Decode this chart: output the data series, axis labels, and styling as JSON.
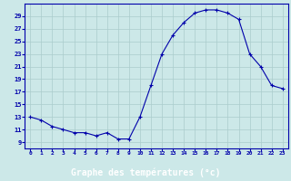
{
  "hours": [
    0,
    1,
    2,
    3,
    4,
    5,
    6,
    7,
    8,
    9,
    10,
    11,
    12,
    13,
    14,
    15,
    16,
    17,
    18,
    19,
    20,
    21,
    22,
    23
  ],
  "temps": [
    13,
    12.5,
    11.5,
    11,
    10.5,
    10.5,
    10,
    10.5,
    9.5,
    9.5,
    13,
    18,
    23,
    26,
    28,
    29.5,
    30,
    30,
    29.5,
    28.5,
    23,
    21,
    18,
    17.5
  ],
  "line_color": "#0000aa",
  "marker": "+",
  "bg_color": "#cce8e8",
  "grid_color": "#aacccc",
  "xlabel": "Graphe des températures (°c)",
  "xlabel_color": "#0000aa",
  "ylabel_ticks": [
    9,
    11,
    13,
    15,
    17,
    19,
    21,
    23,
    25,
    27,
    29
  ],
  "ylim": [
    8.0,
    31.0
  ],
  "xlim": [
    -0.5,
    23.5
  ],
  "xticks": [
    0,
    1,
    2,
    3,
    4,
    5,
    6,
    7,
    8,
    9,
    10,
    11,
    12,
    13,
    14,
    15,
    16,
    17,
    18,
    19,
    20,
    21,
    22,
    23
  ],
  "tick_color": "#0000aa",
  "spine_color": "#0000aa",
  "bottom_bar_color": "#0000aa",
  "bottom_bar_text": "Graphe des températures (°c)",
  "bottom_bar_text_color": "#ffffff"
}
